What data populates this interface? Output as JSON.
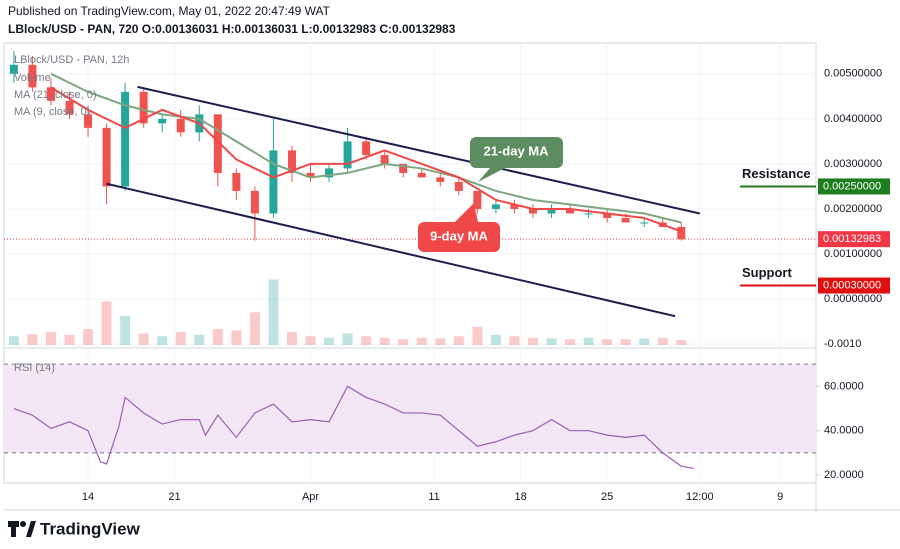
{
  "header": {
    "published": "Published on TradingView.com, May 01, 2022 20:47:49 WAT",
    "symbol_line": "LBlock/USD - PAN, 720  O:0.00136031  H:0.00136031  L:0.00132983  C:0.00132983"
  },
  "footer": {
    "brand": "TradingView"
  },
  "chart_data": [
    {
      "type": "candlestick",
      "title": "LBlock/USD - PAN, 12h",
      "volume_title": "Volume",
      "up_color": "#26a69a",
      "down_color": "#ef5350",
      "x": [
        0,
        3,
        6,
        9,
        12,
        15,
        18,
        21,
        24,
        27,
        30,
        33,
        36,
        39,
        42,
        45,
        48,
        51,
        54,
        57,
        60,
        63,
        66,
        69,
        72,
        75,
        78,
        81,
        84,
        87,
        90,
        93,
        96,
        99,
        102,
        105,
        108
      ],
      "open": [
        0.005,
        0.0052,
        0.0047,
        0.0044,
        0.0041,
        0.0038,
        0.0025,
        0.0046,
        0.0039,
        0.004,
        0.0037,
        0.0041,
        0.0028,
        0.0024,
        0.0019,
        0.0033,
        0.0028,
        0.0027,
        0.0029,
        0.0035,
        0.0032,
        0.003,
        0.0028,
        0.0027,
        0.0026,
        0.0024,
        0.002,
        0.0021,
        0.002,
        0.0019,
        0.002,
        0.0019,
        0.0019,
        0.0018,
        0.0017,
        0.0017,
        0.0016
      ],
      "high": [
        0.0055,
        0.0054,
        0.0049,
        0.0046,
        0.0043,
        0.0039,
        0.0048,
        0.0047,
        0.0041,
        0.0042,
        0.0043,
        0.0041,
        0.0029,
        0.0025,
        0.004,
        0.0034,
        0.003,
        0.003,
        0.0038,
        0.0036,
        0.0033,
        0.003,
        0.0029,
        0.0028,
        0.0027,
        0.0024,
        0.0022,
        0.0022,
        0.0021,
        0.0021,
        0.0021,
        0.002,
        0.002,
        0.0019,
        0.0018,
        0.0018,
        0.0017
      ],
      "low": [
        0.0048,
        0.0046,
        0.0043,
        0.004,
        0.0036,
        0.0021,
        0.0024,
        0.0038,
        0.0037,
        0.0036,
        0.0035,
        0.0025,
        0.0022,
        0.0013,
        0.0018,
        0.0026,
        0.0026,
        0.0026,
        0.0028,
        0.0031,
        0.0029,
        0.0027,
        0.0027,
        0.0025,
        0.0023,
        0.0019,
        0.0019,
        0.0019,
        0.0018,
        0.0018,
        0.0019,
        0.0018,
        0.0017,
        0.0017,
        0.0016,
        0.0016,
        0.0013
      ],
      "close": [
        0.0052,
        0.0047,
        0.0044,
        0.0041,
        0.0038,
        0.0025,
        0.0046,
        0.0039,
        0.004,
        0.0037,
        0.0041,
        0.0028,
        0.0024,
        0.0019,
        0.0033,
        0.0028,
        0.0027,
        0.0029,
        0.0035,
        0.0032,
        0.003,
        0.0028,
        0.0027,
        0.0026,
        0.0024,
        0.002,
        0.0021,
        0.002,
        0.0019,
        0.002,
        0.0019,
        0.0019,
        0.0018,
        0.0017,
        0.0017,
        0.0016,
        0.00133
      ],
      "volume": [
        12,
        15,
        18,
        14,
        22,
        60,
        40,
        16,
        12,
        18,
        14,
        22,
        20,
        45,
        90,
        18,
        12,
        10,
        16,
        12,
        10,
        8,
        10,
        9,
        12,
        25,
        14,
        12,
        10,
        9,
        8,
        10,
        8,
        8,
        9,
        10,
        7
      ],
      "vlim": [
        0,
        110
      ],
      "lines": [
        {
          "name": "MA (21, close, 0)",
          "color": "#7fa77f",
          "x": [
            6,
            12,
            18,
            24,
            30,
            36,
            42,
            48,
            54,
            60,
            66,
            72,
            78,
            84,
            90,
            96,
            102,
            108
          ],
          "values": [
            0.005,
            0.0046,
            0.0043,
            0.0041,
            0.004,
            0.0035,
            0.003,
            0.0027,
            0.0028,
            0.003,
            0.0029,
            0.0027,
            0.0024,
            0.0022,
            0.0021,
            0.002,
            0.0019,
            0.0017
          ]
        },
        {
          "name": "MA (9, close, 0)",
          "color": "#f04848",
          "x": [
            6,
            12,
            18,
            24,
            30,
            36,
            42,
            48,
            54,
            60,
            66,
            72,
            78,
            84,
            90,
            96,
            102,
            108
          ],
          "values": [
            0.0047,
            0.0042,
            0.0038,
            0.0042,
            0.0039,
            0.0031,
            0.0027,
            0.003,
            0.003,
            0.0033,
            0.003,
            0.0027,
            0.0022,
            0.002,
            0.002,
            0.0019,
            0.0018,
            0.0015
          ]
        }
      ],
      "trendlines": [
        {
          "color": "#1f1d4f",
          "x": [
            20,
            111
          ],
          "values": [
            0.00471,
            0.0019
          ]
        },
        {
          "color": "#1f1d4f",
          "x": [
            15,
            107
          ],
          "values": [
            0.00256,
            -0.00038
          ]
        }
      ],
      "price_lines": [
        {
          "text": "Resistance",
          "value": 0.0025,
          "label": "0.00250000",
          "color": "#1e7d1e"
        },
        {
          "text": "Support",
          "value": 0.0003,
          "label": "0.00030000",
          "color": "#e01010"
        },
        {
          "value": 0.00132983,
          "label": "0.00132983",
          "color": "#f23645"
        }
      ],
      "annotations": [
        "21-day MA",
        "9-day MA"
      ],
      "xlim": [
        -1.6,
        129.8
      ],
      "ylim": [
        -0.00102,
        0.00564
      ],
      "grid": true,
      "yticks": [
        {
          "value": 0.005,
          "label": "0.00500000"
        },
        {
          "value": 0.004,
          "label": "0.00400000"
        },
        {
          "value": 0.003,
          "label": "0.00300000"
        },
        {
          "value": 0.002,
          "label": "0.00200000"
        },
        {
          "value": 0.001,
          "label": "0.00100000"
        },
        {
          "value": 0,
          "label": "0.00000000"
        },
        {
          "value": -0.001,
          "label": "-0.0010"
        }
      ],
      "xticks": [
        {
          "value": 12,
          "label": "14"
        },
        {
          "value": 26,
          "label": "21"
        },
        {
          "value": 48,
          "label": "Apr"
        },
        {
          "value": 68,
          "label": "11"
        },
        {
          "value": 82,
          "label": "18"
        },
        {
          "value": 96,
          "label": "25"
        },
        {
          "value": 111,
          "label": "12:00"
        },
        {
          "value": 124,
          "label": "9"
        }
      ]
    },
    {
      "type": "line",
      "title": "RSI (14)",
      "color": "#9c5fb5",
      "band_color": "#f3e6f5",
      "x": [
        0,
        3,
        6,
        9,
        12,
        14,
        15,
        17,
        18,
        21,
        24,
        27,
        30,
        31,
        33,
        36,
        39,
        42,
        45,
        48,
        51,
        54,
        57,
        60,
        63,
        66,
        69,
        72,
        75,
        78,
        81,
        84,
        87,
        90,
        93,
        96,
        99,
        102,
        105,
        108,
        110
      ],
      "values": [
        50,
        47,
        41,
        44,
        40,
        26,
        25,
        42,
        55,
        48,
        43,
        45,
        45,
        38,
        47,
        37,
        48,
        52,
        44,
        45,
        44,
        60,
        55,
        52,
        48,
        48,
        47,
        40,
        33,
        35,
        38,
        40,
        45,
        40,
        40,
        38,
        37,
        38,
        30,
        24,
        23
      ],
      "levels": [
        70,
        30
      ],
      "ylim": [
        16.4,
        76.4
      ],
      "yticks": [
        {
          "value": 60,
          "label": "60.0000"
        },
        {
          "value": 40,
          "label": "40.0000"
        },
        {
          "value": 20,
          "label": "20.0000"
        }
      ]
    }
  ]
}
